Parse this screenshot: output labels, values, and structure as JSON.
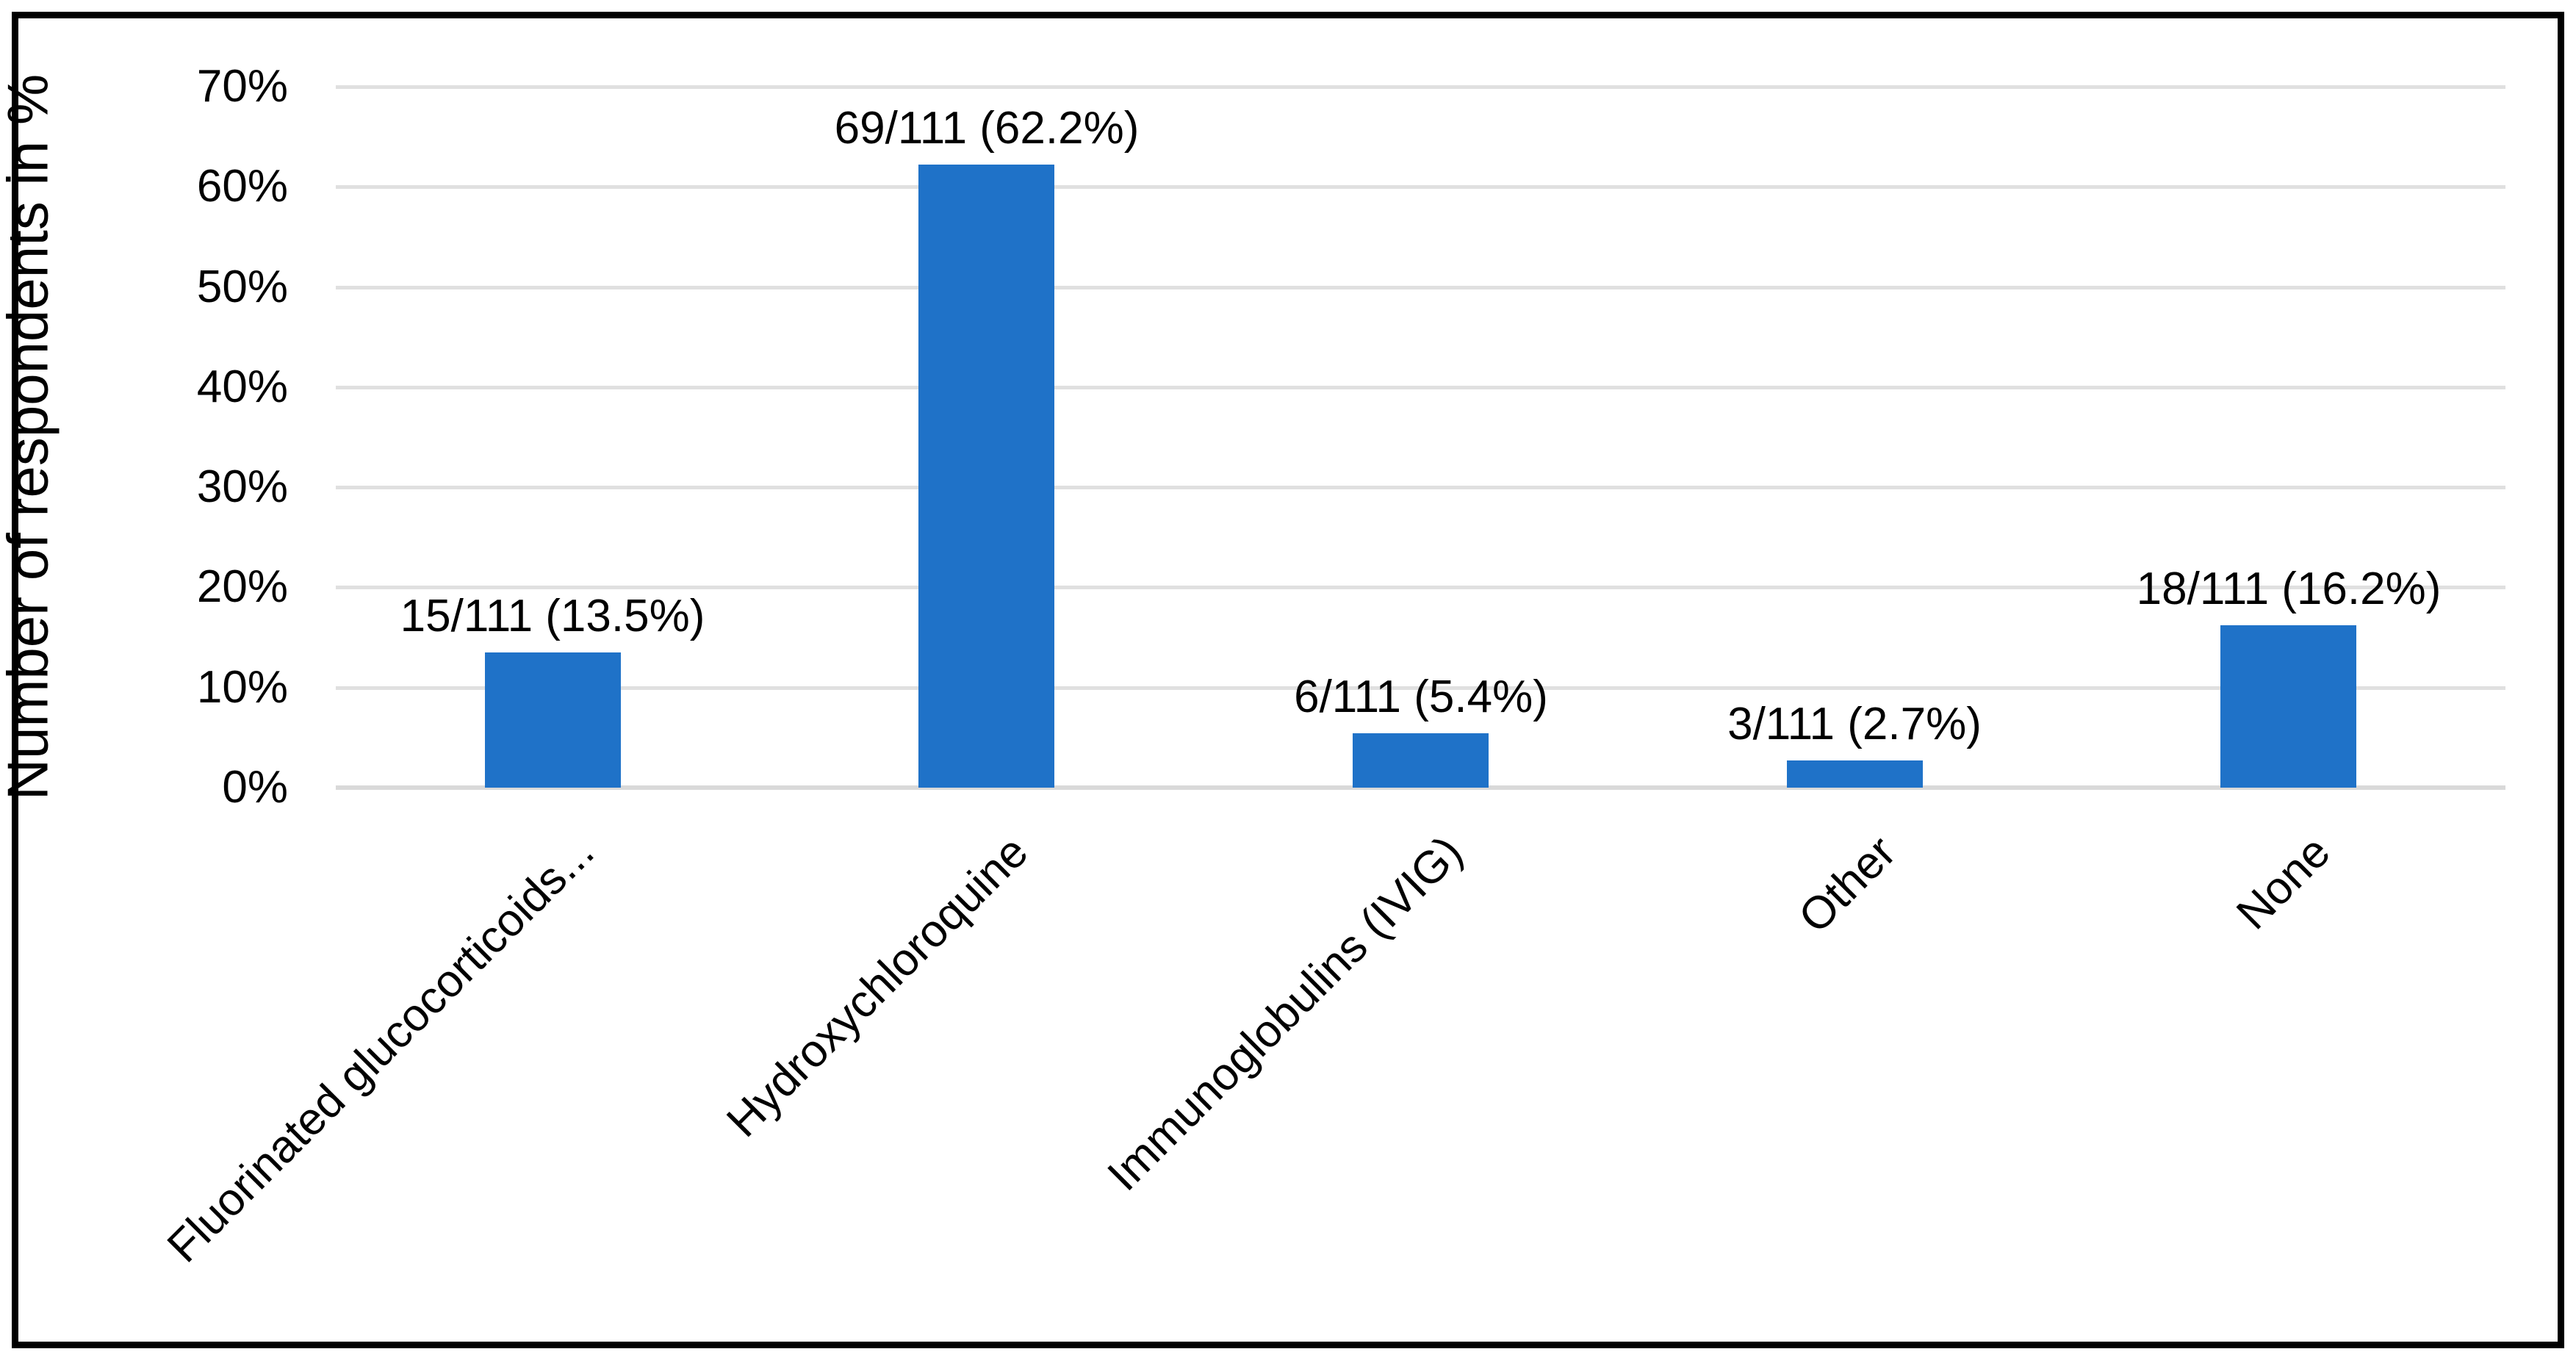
{
  "chart_data": {
    "type": "bar",
    "title": "",
    "ylabel": "Number of respondents in %",
    "xlabel": "",
    "categories": [
      "Fluorinated glucocorticoids...",
      "Hydroxychloroquine",
      "Immunoglobulins (IVIG)",
      "Other",
      "None"
    ],
    "values": [
      13.5,
      62.2,
      5.4,
      2.7,
      16.2
    ],
    "bar_labels": [
      "15/111 (13.5%)",
      "69/111 (62.2%)",
      "6/111 (5.4%)",
      "3/111 (2.7%)",
      "18/111 (16.2%)"
    ],
    "counts": [
      15,
      69,
      6,
      3,
      18
    ],
    "total_respondents": 111,
    "y_ticks": [
      "0%",
      "10%",
      "20%",
      "30%",
      "40%",
      "50%",
      "60%",
      "70%"
    ],
    "ylim": [
      0,
      70
    ],
    "grid": true,
    "legend": false,
    "bar_color": "#1f72c8",
    "gridline_color": "#e0e0e0",
    "zero_line_color": "#d9d9d9",
    "text_color": "#000000",
    "frame_color": "#000000"
  }
}
